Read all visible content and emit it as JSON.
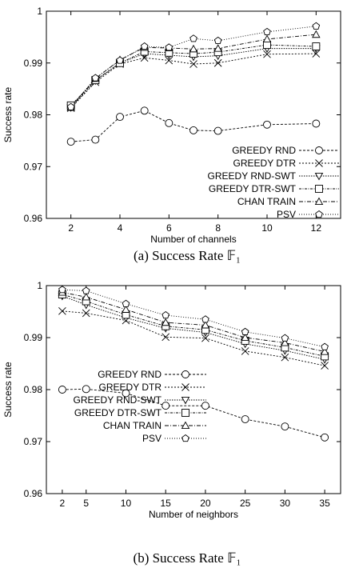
{
  "chart_data": [
    {
      "type": "line",
      "xlabel": "Number of channels",
      "ylabel": "Success rate",
      "caption": "(a) Success Rate 𝔽₁",
      "xlim": [
        1,
        13
      ],
      "ylim": [
        0.96,
        1.0
      ],
      "x_ticks": [
        2,
        4,
        6,
        8,
        10,
        12
      ],
      "y_ticks": [
        0.96,
        0.97,
        0.98,
        0.99,
        1.0
      ],
      "y_tick_labels": [
        "0.96",
        "0.97",
        "0.98",
        "0.99",
        "1"
      ],
      "legend_position": "bottom-right",
      "grid": false,
      "series": [
        {
          "name": "GREEDY RND",
          "marker": "circle",
          "x": [
            2,
            3,
            4,
            5,
            6,
            7,
            8,
            10,
            12
          ],
          "values": [
            0.9748,
            0.9752,
            0.9796,
            0.9808,
            0.9784,
            0.977,
            0.9769,
            0.9781,
            0.9783
          ]
        },
        {
          "name": "GREEDY DTR",
          "marker": "x",
          "x": [
            2,
            3,
            4,
            5,
            6,
            7,
            8,
            10,
            12
          ],
          "values": [
            0.9813,
            0.9863,
            0.9898,
            0.991,
            0.9905,
            0.9898,
            0.99,
            0.9917,
            0.9918
          ]
        },
        {
          "name": "GREEDY RND-SWT",
          "marker": "triangle-down",
          "x": [
            2,
            3,
            4,
            5,
            6,
            7,
            8,
            10,
            12
          ],
          "values": [
            0.9814,
            0.9866,
            0.99,
            0.9918,
            0.9915,
            0.9912,
            0.9914,
            0.9928,
            0.9928
          ]
        },
        {
          "name": "GREEDY DTR-SWT",
          "marker": "square",
          "x": [
            2,
            3,
            4,
            5,
            6,
            7,
            8,
            10,
            12
          ],
          "values": [
            0.9818,
            0.9867,
            0.99,
            0.9922,
            0.992,
            0.9918,
            0.9921,
            0.9935,
            0.9932
          ]
        },
        {
          "name": "CHAN TRAIN",
          "marker": "triangle-up",
          "x": [
            2,
            3,
            4,
            5,
            6,
            7,
            8,
            10,
            12
          ],
          "values": [
            0.9814,
            0.987,
            0.9906,
            0.993,
            0.9929,
            0.9927,
            0.9928,
            0.9946,
            0.9955
          ]
        },
        {
          "name": "PSV",
          "marker": "pentagon",
          "x": [
            2,
            3,
            4,
            5,
            6,
            7,
            8,
            10,
            12
          ],
          "values": [
            0.9815,
            0.9871,
            0.9905,
            0.9932,
            0.993,
            0.9947,
            0.9943,
            0.996,
            0.9971
          ]
        }
      ]
    },
    {
      "type": "line",
      "xlabel": "Number of neighbors",
      "ylabel": "Success rate",
      "caption": "(b) Success Rate 𝔽₁",
      "xlim": [
        0,
        37
      ],
      "ylim": [
        0.96,
        1.0
      ],
      "x_ticks": [
        2,
        5,
        10,
        15,
        20,
        25,
        30,
        35
      ],
      "y_ticks": [
        0.96,
        0.97,
        0.98,
        0.99,
        1.0
      ],
      "y_tick_labels": [
        "0.96",
        "0.97",
        "0.98",
        "0.99",
        "1"
      ],
      "legend_position": "left-middle",
      "grid": false,
      "series": [
        {
          "name": "GREEDY RND",
          "marker": "circle",
          "x": [
            2,
            5,
            10,
            15,
            20,
            25,
            30,
            35
          ],
          "values": [
            0.98,
            0.9801,
            0.9793,
            0.9769,
            0.9769,
            0.9743,
            0.9729,
            0.9708
          ]
        },
        {
          "name": "GREEDY DTR",
          "marker": "x",
          "x": [
            2,
            5,
            10,
            15,
            20,
            25,
            30,
            35
          ],
          "values": [
            0.9951,
            0.9947,
            0.9933,
            0.9901,
            0.9899,
            0.9874,
            0.9862,
            0.9846
          ]
        },
        {
          "name": "GREEDY RND-SWT",
          "marker": "triangle-down",
          "x": [
            2,
            5,
            10,
            15,
            20,
            25,
            30,
            35
          ],
          "values": [
            0.998,
            0.9963,
            0.9938,
            0.9918,
            0.991,
            0.9888,
            0.9875,
            0.9858
          ]
        },
        {
          "name": "GREEDY DTR-SWT",
          "marker": "square",
          "x": [
            2,
            5,
            10,
            15,
            20,
            25,
            30,
            35
          ],
          "values": [
            0.9983,
            0.997,
            0.9944,
            0.9922,
            0.9915,
            0.9894,
            0.9881,
            0.9864
          ]
        },
        {
          "name": "CHAN TRAIN",
          "marker": "triangle-up",
          "x": [
            2,
            5,
            10,
            15,
            20,
            25,
            30,
            35
          ],
          "values": [
            0.9987,
            0.9978,
            0.9954,
            0.9929,
            0.9924,
            0.99,
            0.989,
            0.9873
          ]
        },
        {
          "name": "PSV",
          "marker": "pentagon",
          "x": [
            2,
            5,
            10,
            15,
            20,
            25,
            30,
            35
          ],
          "values": [
            0.9992,
            0.999,
            0.9965,
            0.9943,
            0.9935,
            0.9911,
            0.9899,
            0.9882
          ]
        }
      ]
    }
  ]
}
